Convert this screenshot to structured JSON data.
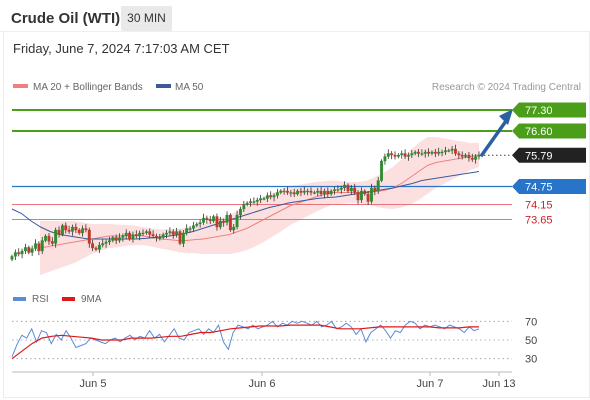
{
  "header": {
    "title": "Crude Oil (WTI)",
    "timeframe": "30 MIN",
    "datetime": "Friday, June 7, 2024 7:17:03 AM CET"
  },
  "colors": {
    "resistance": "#4a9e1a",
    "current": "#222222",
    "pivot": "#2874c8",
    "support": "#e8737a",
    "ma20": "#f08080",
    "ma50": "#3a5a9c",
    "bands_fill": "#fbd5d5",
    "candle_up": "#2e8b2e",
    "candle_down": "#c0392b",
    "arrow": "#2a5fa0",
    "rsi": "#5b8bd9",
    "rsi_ma": "#e01818"
  },
  "chart_data": [
    {
      "type": "candlestick",
      "title": "Crude Oil (WTI)",
      "legend": [
        {
          "label": "MA 20 + Bollinger Bands",
          "color": "#f08080"
        },
        {
          "label": "MA 50",
          "color": "#3a5a9c"
        }
      ],
      "watermark": "Research © 2024 Trading Central",
      "price_range": [
        71.6,
        77.9
      ],
      "price_levels": [
        {
          "value": 77.3,
          "label": "77.30",
          "kind": "resistance"
        },
        {
          "value": 76.6,
          "label": "76.60",
          "kind": "resistance"
        },
        {
          "value": 75.79,
          "label": "75.79",
          "kind": "current"
        },
        {
          "value": 74.75,
          "label": "74.75",
          "kind": "pivot"
        },
        {
          "value": 74.15,
          "label": "74.15",
          "kind": "support"
        },
        {
          "value": 73.65,
          "label": "73.65",
          "kind": "support"
        }
      ],
      "forecast_arrow": {
        "from": 75.79,
        "to": 77.3
      },
      "x_ticks": [
        "Jun 5",
        "Jun 6",
        "Jun 7",
        "Jun 13"
      ],
      "ohlc_close": [
        72.42,
        72.55,
        72.5,
        72.6,
        72.72,
        72.55,
        72.68,
        72.85,
        72.6,
        72.95,
        73.1,
        72.92,
        72.85,
        73.3,
        73.15,
        73.45,
        73.3,
        73.25,
        73.4,
        73.3,
        73.2,
        73.35,
        73.3,
        72.85,
        72.7,
        72.65,
        72.8,
        72.85,
        72.9,
        72.95,
        73.05,
        72.95,
        73.05,
        73.1,
        73.2,
        73.0,
        73.15,
        73.1,
        73.2,
        73.2,
        73.25,
        73.15,
        73.1,
        73.05,
        73.05,
        73.15,
        73.2,
        73.25,
        73.15,
        73.25,
        72.85,
        73.2,
        73.35,
        73.35,
        73.45,
        73.5,
        73.55,
        73.7,
        73.65,
        73.6,
        73.75,
        73.4,
        73.6,
        73.55,
        73.8,
        73.3,
        73.4,
        73.8,
        74.0,
        74.15,
        74.2,
        74.25,
        74.25,
        74.3,
        74.35,
        74.35,
        74.45,
        74.4,
        74.45,
        74.55,
        74.6,
        74.6,
        74.55,
        74.55,
        74.5,
        74.6,
        74.55,
        74.6,
        74.6,
        74.55,
        74.55,
        74.6,
        74.5,
        74.6,
        74.5,
        74.6,
        74.65,
        74.65,
        74.7,
        74.8,
        74.6,
        74.7,
        74.55,
        74.3,
        74.6,
        74.5,
        74.25,
        74.7,
        74.6,
        74.95,
        75.6,
        75.75,
        75.85,
        75.8,
        75.75,
        75.8,
        75.85,
        75.75,
        75.8,
        75.85,
        75.9,
        75.85,
        75.85,
        75.9,
        75.85,
        75.9,
        75.85,
        75.9,
        75.9,
        75.95,
        75.95,
        76.0,
        75.85,
        75.8,
        75.75,
        75.8,
        75.7,
        75.65,
        75.75,
        75.8
      ],
      "ma20": [
        72.7,
        72.75,
        72.8,
        72.85,
        72.9,
        72.95,
        73.0,
        73.05,
        73.1,
        73.1,
        73.12,
        73.12,
        73.1,
        73.05,
        73.0,
        72.98,
        72.95,
        72.95,
        72.98,
        73.0,
        73.05,
        73.1,
        73.15,
        73.25,
        73.35,
        73.5,
        73.65,
        73.8,
        73.95,
        74.1,
        74.2,
        74.3,
        74.4,
        74.48,
        74.55,
        74.55,
        74.55,
        74.55,
        74.55,
        74.58,
        74.62,
        74.7,
        74.85,
        75.05,
        75.25,
        75.45,
        75.55,
        75.6,
        75.65,
        75.7,
        75.75,
        75.8
      ],
      "ma50": [
        74.0,
        73.85,
        73.6,
        73.4,
        73.25,
        73.15,
        73.1,
        73.05,
        73.0,
        73.0,
        73.0,
        73.0,
        73.0,
        73.0,
        73.02,
        73.05,
        73.08,
        73.12,
        73.18,
        73.25,
        73.35,
        73.45,
        73.55,
        73.65,
        73.75,
        73.85,
        73.95,
        74.05,
        74.12,
        74.2,
        74.25,
        74.3,
        74.35,
        74.38,
        74.4,
        74.45,
        74.5,
        74.55,
        74.6,
        74.65,
        74.7,
        74.78,
        74.85,
        74.95,
        75.0,
        75.05,
        75.1,
        75.15,
        75.2,
        75.25
      ]
    },
    {
      "type": "line",
      "legend": [
        {
          "label": "RSI",
          "color": "#5b8bd9"
        },
        {
          "label": "9MA",
          "color": "#e01818"
        }
      ],
      "ylim": [
        20,
        80
      ],
      "y_ticks": [
        70,
        50,
        30
      ],
      "reference_lines": [
        70,
        50,
        30
      ],
      "series": [
        {
          "name": "RSI",
          "values": [
            32,
            45,
            55,
            52,
            62,
            48,
            60,
            58,
            46,
            56,
            50,
            60,
            52,
            42,
            44,
            46,
            52,
            50,
            48,
            46,
            50,
            52,
            48,
            52,
            55,
            50,
            54,
            52,
            60,
            52,
            56,
            48,
            55,
            62,
            52,
            50,
            58,
            60,
            62,
            56,
            62,
            58,
            66,
            48,
            40,
            58,
            66,
            64,
            62,
            66,
            62,
            64,
            66,
            70,
            64,
            68,
            66,
            70,
            68,
            70,
            68,
            66,
            70,
            64,
            66,
            70,
            62,
            64,
            68,
            64,
            56,
            62,
            48,
            58,
            62,
            66,
            60,
            52,
            60,
            58,
            66,
            70,
            68,
            62,
            66,
            64,
            66,
            64,
            62,
            66,
            64,
            62,
            58,
            64,
            60,
            62
          ]
        },
        {
          "name": "9MA",
          "values": [
            30,
            38,
            46,
            52,
            54,
            55,
            54,
            53,
            52,
            50,
            50,
            50,
            52,
            52,
            52,
            53,
            54,
            54,
            56,
            58,
            58,
            60,
            62,
            63,
            64,
            65,
            65,
            65,
            66,
            66,
            66,
            66,
            64,
            62,
            62,
            62,
            63,
            64,
            64,
            64,
            64,
            64,
            64,
            63,
            63,
            63,
            64,
            64
          ]
        }
      ]
    }
  ]
}
